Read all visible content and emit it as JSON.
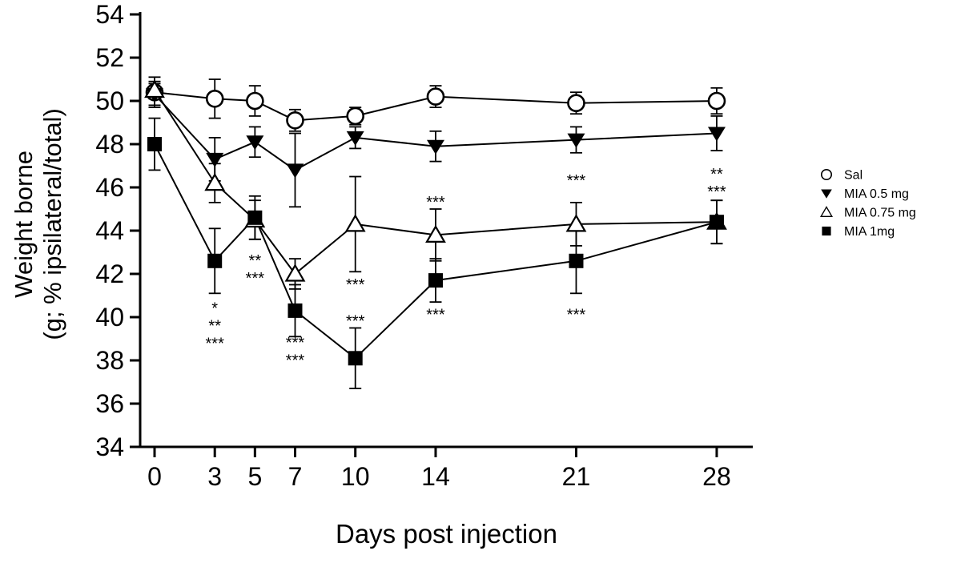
{
  "chart_data": {
    "type": "line",
    "title": "",
    "xlabel": "Days post injection",
    "ylabel_line1": "Weight borne",
    "ylabel_line2": "(g; % ipsilateral/total)",
    "x": [
      0,
      3,
      5,
      7,
      10,
      14,
      21,
      28
    ],
    "xlim": [
      -1,
      30
    ],
    "ylim": [
      34,
      54
    ],
    "yticks": [
      34,
      36,
      38,
      40,
      42,
      44,
      46,
      48,
      50,
      52,
      54
    ],
    "grid": false,
    "legend_position": "right",
    "colors": {
      "foreground": "#000000",
      "background": "#ffffff"
    },
    "series": [
      {
        "name": "Sal",
        "marker": "circle-open",
        "values": [
          50.4,
          50.1,
          50.0,
          49.1,
          49.3,
          50.2,
          49.9,
          50.0
        ],
        "err": [
          0.7,
          0.9,
          0.7,
          0.5,
          0.4,
          0.5,
          0.5,
          0.6
        ]
      },
      {
        "name": "MIA 0.5 mg",
        "marker": "triangle-down-filled",
        "values": [
          50.3,
          47.3,
          48.1,
          46.8,
          48.3,
          47.9,
          48.2,
          48.5
        ],
        "err": [
          0.5,
          1.0,
          0.7,
          1.7,
          0.5,
          0.7,
          0.6,
          0.8
        ]
      },
      {
        "name": "MIA 0.75 mg",
        "marker": "triangle-up-open",
        "values": [
          50.5,
          46.2,
          44.5,
          42.0,
          44.3,
          43.8,
          44.3,
          44.4
        ],
        "err": [
          0.4,
          0.9,
          0.9,
          0.7,
          2.2,
          1.2,
          1.0,
          1.0
        ]
      },
      {
        "name": "MIA 1mg",
        "marker": "square-filled",
        "values": [
          48.0,
          42.6,
          44.6,
          40.3,
          38.1,
          41.7,
          42.6,
          44.4
        ],
        "err": [
          1.2,
          1.5,
          1.0,
          1.2,
          1.4,
          1.0,
          1.5,
          1.0
        ]
      }
    ],
    "annotations": [
      {
        "x": 3,
        "y": 40.5,
        "lines": [
          "*",
          "**",
          "***"
        ]
      },
      {
        "x": 5,
        "y": 42.7,
        "lines": [
          "**",
          "***"
        ]
      },
      {
        "x": 7,
        "y": 38.9,
        "lines": [
          "***",
          "***"
        ]
      },
      {
        "x": 10,
        "y": 41.6,
        "lines": [
          "***"
        ]
      },
      {
        "x": 10,
        "y": 39.9,
        "lines": [
          "***"
        ]
      },
      {
        "x": 14,
        "y": 45.4,
        "lines": [
          "***"
        ]
      },
      {
        "x": 14,
        "y": 40.2,
        "lines": [
          "***"
        ]
      },
      {
        "x": 21,
        "y": 46.4,
        "lines": [
          "***"
        ]
      },
      {
        "x": 21,
        "y": 40.2,
        "lines": [
          "***"
        ]
      },
      {
        "x": 28,
        "y": 46.7,
        "lines": [
          "**",
          "***"
        ]
      }
    ]
  }
}
